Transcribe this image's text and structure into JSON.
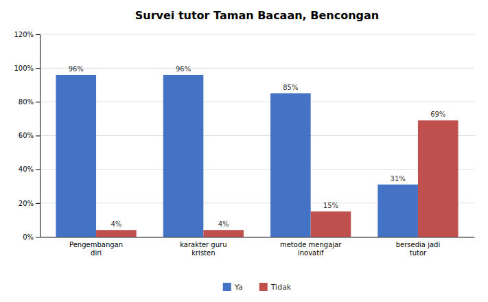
{
  "chart_data": {
    "type": "bar",
    "title": "Survei tutor Taman Bacaan, Bencongan",
    "categories": [
      "Pengembangan\ndiri",
      "karakter guru\nkristen",
      "metode mengajar\ninovatif",
      "bersedia jadi\ntutor"
    ],
    "series": [
      {
        "name": "Ya",
        "color": "#4472C4",
        "values": [
          96,
          96,
          85,
          31
        ],
        "value_labels": [
          "96%",
          "96%",
          "85%",
          "31%"
        ]
      },
      {
        "name": "Tidak",
        "color": "#C0504D",
        "values": [
          4,
          4,
          15,
          69
        ],
        "value_labels": [
          "4%",
          "4%",
          "15%",
          "69%"
        ]
      }
    ],
    "ylim": [
      0,
      120
    ],
    "yticks": [
      {
        "value": 0,
        "label": "0%"
      },
      {
        "value": 20,
        "label": "20%"
      },
      {
        "value": 40,
        "label": "40%"
      },
      {
        "value": 60,
        "label": "60%"
      },
      {
        "value": 80,
        "label": "80%"
      },
      {
        "value": 100,
        "label": "100%"
      },
      {
        "value": 120,
        "label": "120%"
      }
    ],
    "grid": true,
    "legend": "bottom",
    "data_labels": true
  }
}
